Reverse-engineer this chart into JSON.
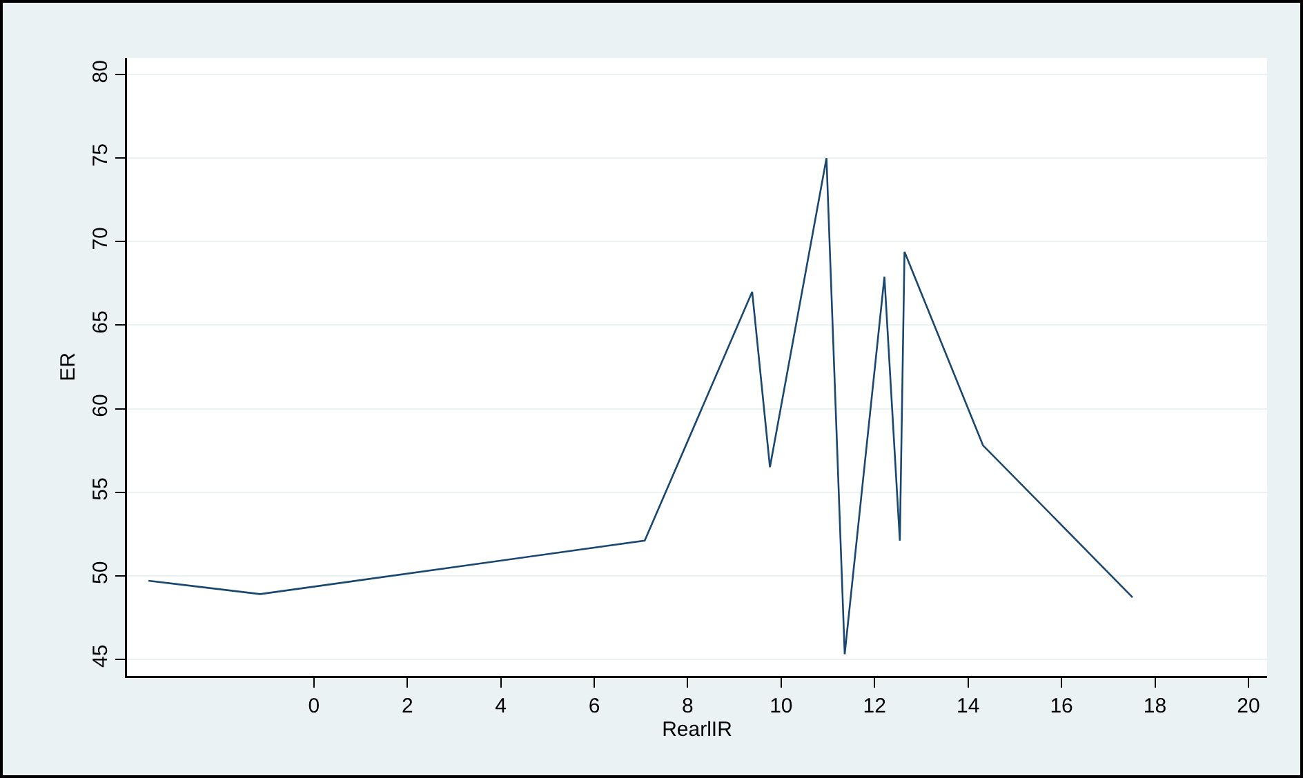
{
  "chart_data": {
    "type": "line",
    "xlabel": "RearlIR",
    "ylabel": "ER",
    "x": [
      -3.54,
      -1.15,
      7.08,
      9.38,
      9.76,
      10.97,
      11.36,
      12.21,
      12.54,
      12.64,
      14.32,
      15.87,
      17.52
    ],
    "series": [
      {
        "color": "#1a476f",
        "values": [
          49.7,
          48.9,
          52.1,
          67.0,
          56.5,
          75.0,
          45.3,
          67.9,
          52.1,
          69.4,
          57.8,
          53.4,
          48.7
        ]
      }
    ],
    "xlim": [
      -4,
      20.4
    ],
    "xticks": [
      0,
      2,
      4,
      6,
      8,
      10,
      12,
      14,
      16,
      18,
      20
    ],
    "ylim": [
      44,
      81
    ],
    "yticks": [
      45,
      50,
      55,
      60,
      65,
      70,
      75,
      80
    ],
    "grid": "y",
    "marker": "none",
    "line_style": "solid"
  }
}
